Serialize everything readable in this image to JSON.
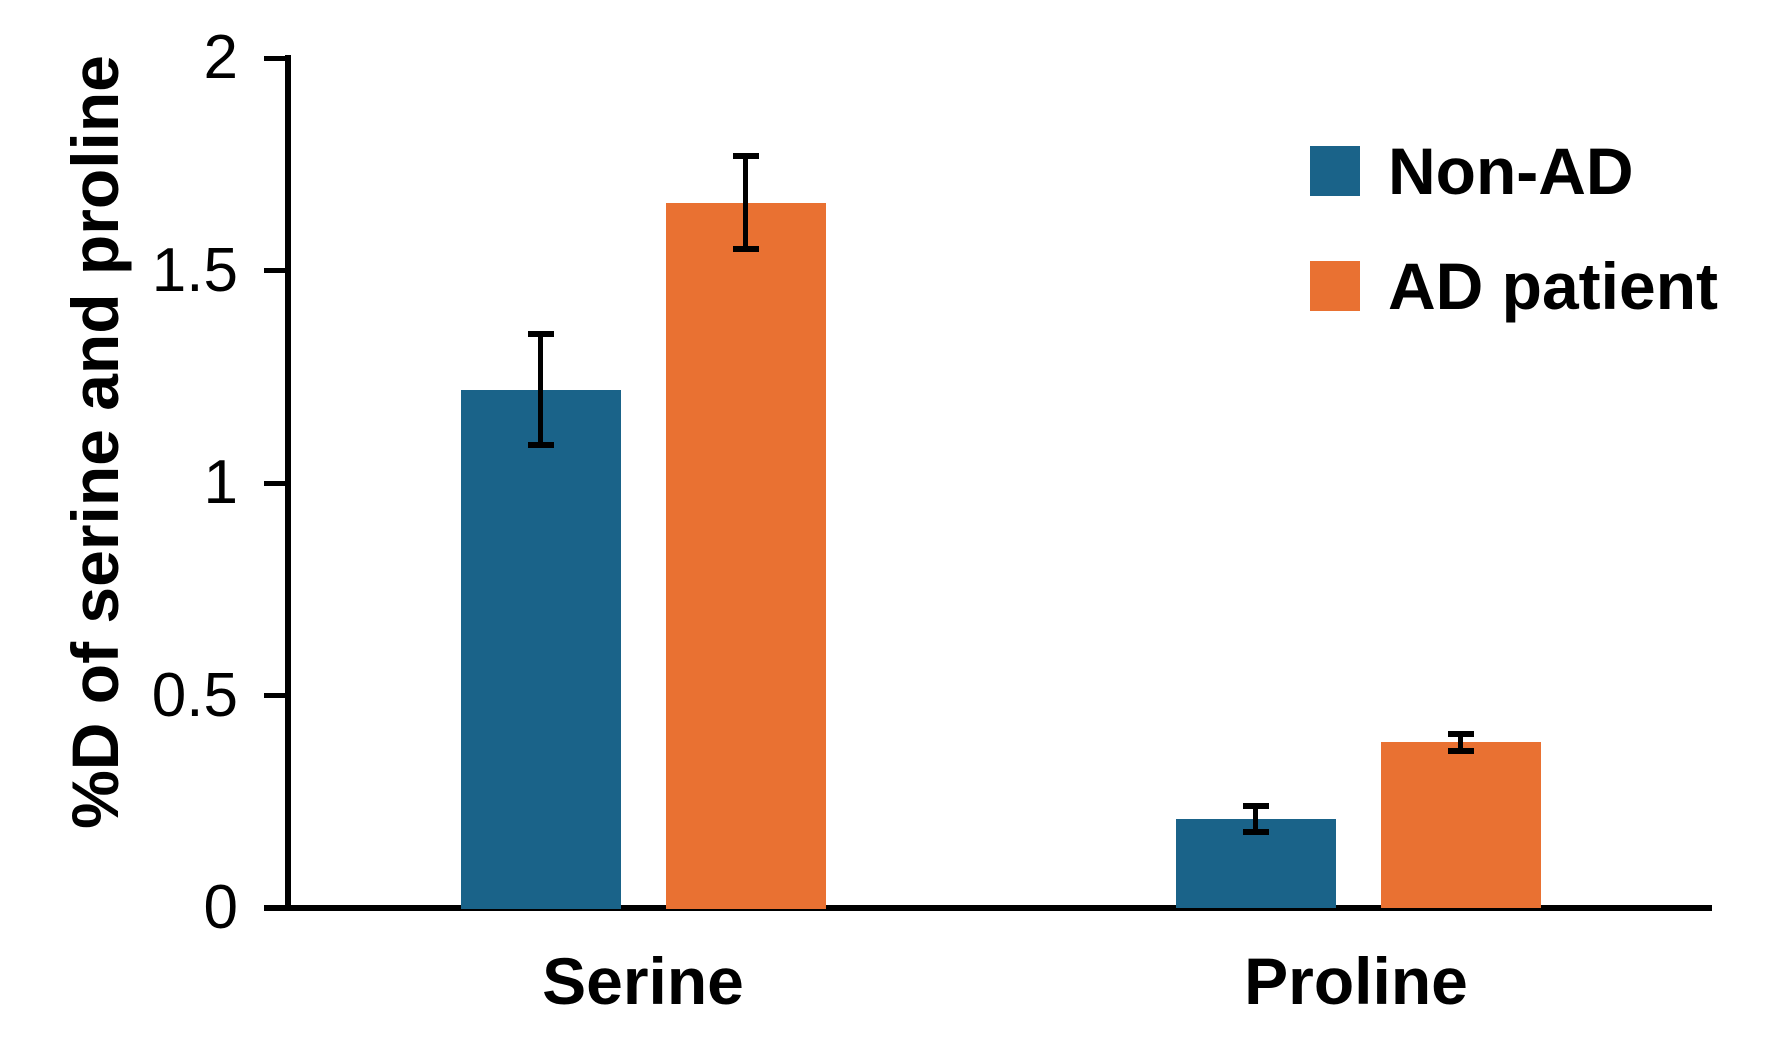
{
  "chart_data": {
    "type": "bar",
    "title": "",
    "ylabel": "%D of serine and proline",
    "xlabel": "",
    "categories": [
      "Serine",
      "Proline"
    ],
    "series": [
      {
        "name": "Non-AD",
        "color": "#1A6389",
        "values": [
          1.22,
          0.21
        ],
        "errors": [
          0.13,
          0.03
        ]
      },
      {
        "name": "AD patient",
        "color": "#E97132",
        "values": [
          1.66,
          0.39
        ],
        "errors": [
          0.11,
          0.02
        ]
      }
    ],
    "ylim": [
      0,
      2
    ],
    "yticks": [
      0,
      0.5,
      1,
      1.5,
      2
    ],
    "ytick_labels": [
      "0",
      "0.5",
      "1",
      "1.5",
      "2"
    ],
    "error_bars": true,
    "grid": false,
    "legend_position": "top-right",
    "axis_color": "#000000",
    "background_color": "#FFFFFF"
  }
}
